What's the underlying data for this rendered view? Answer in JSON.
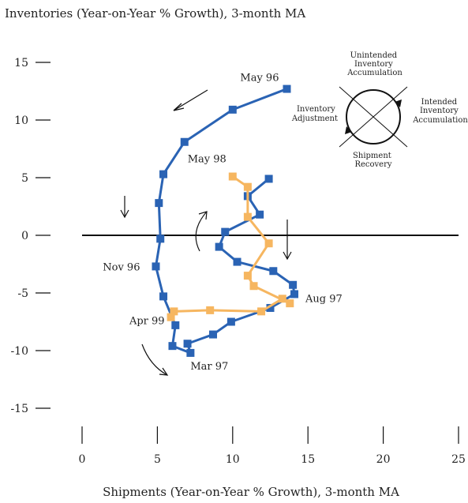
{
  "chart_data": {
    "type": "scatter",
    "title": "Inventories (Year-on-Year % Growth), 3-month MA",
    "xlabel": "Shipments (Year-on-Year % Growth), 3-month MA",
    "ylabel": "",
    "xlim": [
      0,
      25
    ],
    "ylim": [
      -15,
      15
    ],
    "x_ticks": [
      "0",
      "5",
      "10",
      "15",
      "20",
      "25"
    ],
    "y_ticks": [
      "15",
      "10",
      "5",
      "0",
      "-5",
      "-10",
      "-15"
    ],
    "x_tick_values": [
      0,
      5,
      10,
      15,
      20,
      25
    ],
    "y_tick_values": [
      15,
      10,
      5,
      0,
      -5,
      -10,
      -15
    ],
    "grid": false,
    "series": [
      {
        "color": "#2a63b4",
        "points": [
          [
            13.6,
            12.7
          ],
          [
            10.0,
            10.9
          ],
          [
            6.8,
            8.1
          ],
          [
            5.4,
            5.3
          ],
          [
            5.1,
            2.8
          ],
          [
            5.2,
            -0.3
          ],
          [
            4.9,
            -2.7
          ],
          [
            5.4,
            -5.3
          ],
          [
            6.2,
            -7.8
          ],
          [
            6.0,
            -9.6
          ],
          [
            7.2,
            -10.2
          ],
          [
            7.0,
            -9.4
          ],
          [
            8.7,
            -8.6
          ],
          [
            9.9,
            -7.5
          ],
          [
            12.5,
            -6.3
          ],
          [
            14.1,
            -5.1
          ],
          [
            14.0,
            -4.3
          ],
          [
            12.7,
            -3.1
          ],
          [
            10.3,
            -2.3
          ],
          [
            9.1,
            -1.0
          ],
          [
            9.5,
            0.3
          ],
          [
            11.8,
            1.8
          ],
          [
            11.0,
            3.4
          ],
          [
            12.4,
            4.9
          ]
        ]
      },
      {
        "color": "#f6b660",
        "points": [
          [
            10.0,
            5.1
          ],
          [
            11.0,
            4.2
          ],
          [
            11.0,
            1.6
          ],
          [
            12.4,
            -0.7
          ],
          [
            11.0,
            -3.5
          ],
          [
            11.4,
            -4.4
          ],
          [
            13.8,
            -5.9
          ],
          [
            13.3,
            -5.5
          ],
          [
            11.9,
            -6.6
          ],
          [
            8.5,
            -6.5
          ],
          [
            6.1,
            -6.6
          ],
          [
            5.9,
            -7.1
          ]
        ]
      }
    ],
    "annotations": [
      {
        "text": "May 96",
        "x": 13.6,
        "y": 12.7
      },
      {
        "text": "May 98",
        "x": 10.0,
        "y": 5.1
      },
      {
        "text": "Nov 96",
        "x": 4.9,
        "y": -2.7
      },
      {
        "text": "Aug 97",
        "x": 14.1,
        "y": -5.1
      },
      {
        "text": "Apr 99",
        "x": 5.9,
        "y": -7.1
      },
      {
        "text": "Mar 97",
        "x": 7.2,
        "y": -10.2
      }
    ],
    "cycle_diagram": {
      "top": [
        "Unintended",
        "Inventory",
        "Accumulation"
      ],
      "left": [
        "Inventory",
        "Adjustment"
      ],
      "right": [
        "Intended",
        "Inventory",
        "Accumulation"
      ],
      "bottom": [
        "Shipment",
        "Recovery"
      ]
    }
  }
}
